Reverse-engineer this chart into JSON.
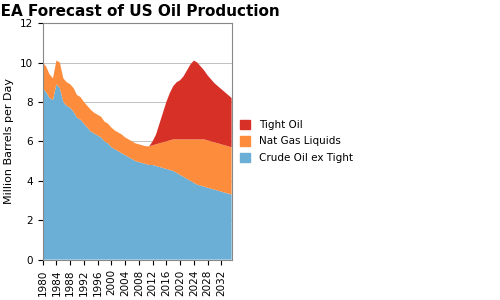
{
  "title": "IEA Forecast of US Oil Production",
  "ylabel": "Million Barrels per Day",
  "ylim": [
    0,
    12
  ],
  "yticks": [
    0,
    2,
    4,
    6,
    8,
    10,
    12
  ],
  "xtick_years": [
    1980,
    1984,
    1988,
    1992,
    1996,
    2000,
    2004,
    2008,
    2012,
    2016,
    2020,
    2024,
    2028,
    2032
  ],
  "years": [
    1980,
    1981,
    1982,
    1983,
    1984,
    1985,
    1986,
    1987,
    1988,
    1989,
    1990,
    1991,
    1992,
    1993,
    1994,
    1995,
    1996,
    1997,
    1998,
    1999,
    2000,
    2001,
    2002,
    2003,
    2004,
    2005,
    2006,
    2007,
    2008,
    2009,
    2010,
    2011,
    2012,
    2013,
    2014,
    2015,
    2016,
    2017,
    2018,
    2019,
    2020,
    2021,
    2022,
    2023,
    2024,
    2025,
    2026,
    2027,
    2028,
    2029,
    2030,
    2031,
    2032,
    2033,
    2034,
    2035
  ],
  "crude_oil": [
    8.7,
    8.5,
    8.2,
    8.1,
    8.9,
    8.7,
    8.0,
    7.8,
    7.7,
    7.5,
    7.2,
    7.1,
    6.9,
    6.7,
    6.5,
    6.4,
    6.3,
    6.2,
    6.0,
    5.9,
    5.7,
    5.6,
    5.5,
    5.4,
    5.3,
    5.2,
    5.1,
    5.0,
    4.95,
    4.9,
    4.85,
    4.8,
    4.8,
    4.75,
    4.7,
    4.65,
    4.6,
    4.55,
    4.5,
    4.4,
    4.3,
    4.2,
    4.1,
    4.0,
    3.9,
    3.8,
    3.75,
    3.7,
    3.65,
    3.6,
    3.55,
    3.5,
    3.45,
    3.4,
    3.35,
    3.3
  ],
  "nat_gas": [
    1.3,
    1.3,
    1.2,
    1.1,
    1.2,
    1.3,
    1.2,
    1.2,
    1.2,
    1.2,
    1.15,
    1.15,
    1.1,
    1.1,
    1.1,
    1.05,
    1.05,
    1.05,
    1.0,
    1.0,
    1.0,
    0.95,
    0.95,
    0.95,
    0.9,
    0.9,
    0.9,
    0.9,
    0.9,
    0.9,
    0.9,
    0.95,
    1.0,
    1.1,
    1.2,
    1.3,
    1.4,
    1.5,
    1.6,
    1.7,
    1.8,
    1.9,
    2.0,
    2.1,
    2.2,
    2.3,
    2.35,
    2.4,
    2.4,
    2.4,
    2.4,
    2.4,
    2.4,
    2.4,
    2.4,
    2.4
  ],
  "tight_oil": [
    0.0,
    0.0,
    0.0,
    0.0,
    0.0,
    0.0,
    0.0,
    0.0,
    0.0,
    0.0,
    0.0,
    0.0,
    0.0,
    0.0,
    0.0,
    0.0,
    0.0,
    0.0,
    0.0,
    0.0,
    0.0,
    0.0,
    0.0,
    0.0,
    0.0,
    0.0,
    0.0,
    0.0,
    0.0,
    0.0,
    0.0,
    0.0,
    0.2,
    0.5,
    1.0,
    1.5,
    2.0,
    2.4,
    2.7,
    2.9,
    3.0,
    3.2,
    3.5,
    3.8,
    4.0,
    3.9,
    3.7,
    3.5,
    3.3,
    3.15,
    3.0,
    2.9,
    2.8,
    2.7,
    2.6,
    2.5
  ],
  "color_crude": "#6baed6",
  "color_nat_gas": "#fd8d3c",
  "color_tight": "#d73027",
  "legend_labels": [
    "Tight Oil",
    "Nat Gas Liquids",
    "Crude Oil ex Tight"
  ],
  "title_fontsize": 11,
  "label_fontsize": 8,
  "tick_fontsize": 7.5
}
